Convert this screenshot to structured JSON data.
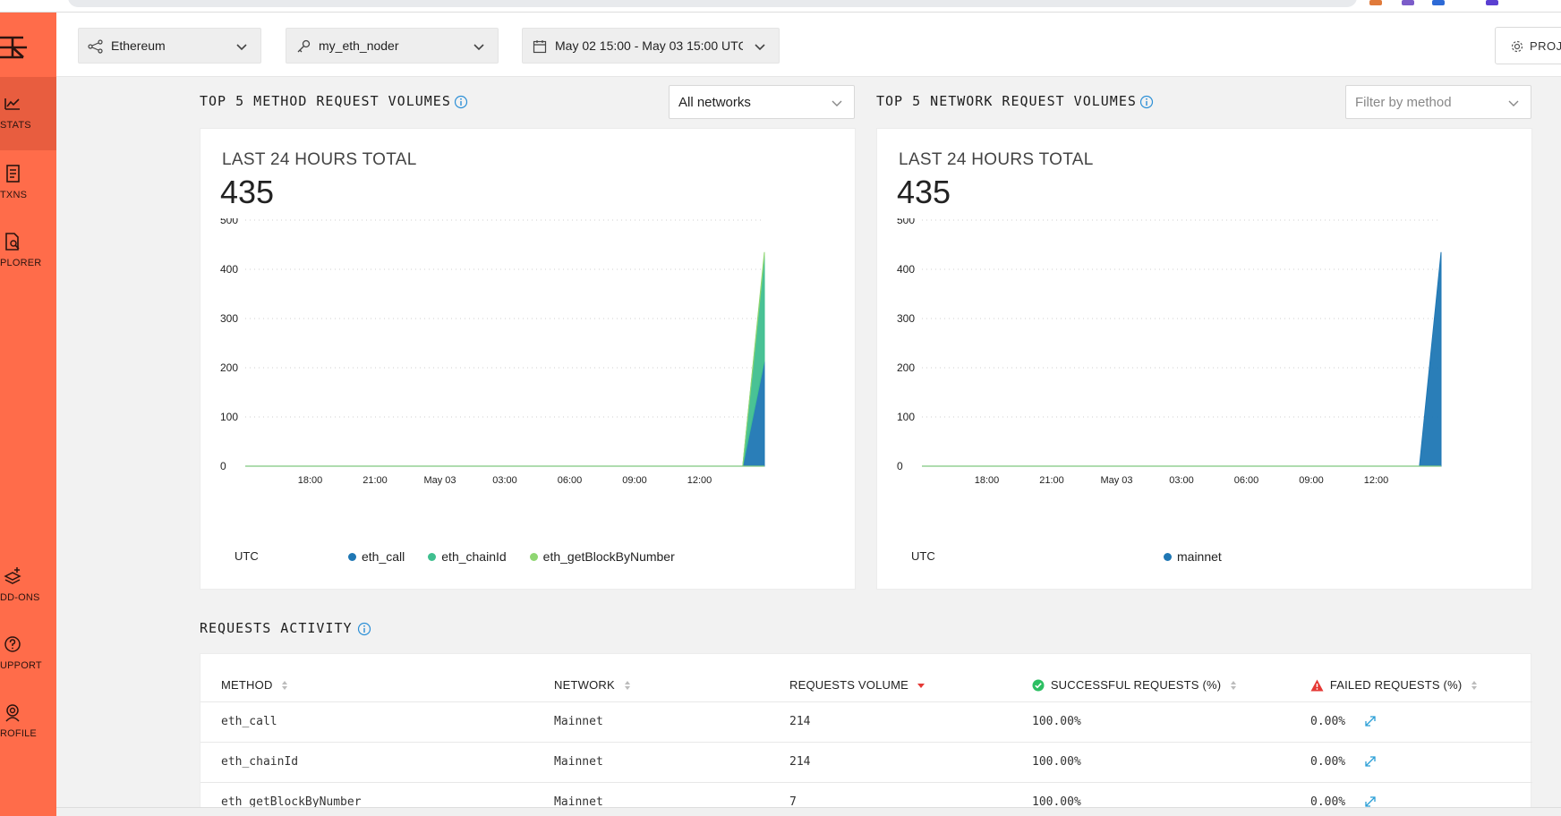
{
  "topbar": {
    "network": "Ethereum",
    "endpoint": "my_eth_noder",
    "daterange": "May 02 15:00 - May 03 15:00 UTC",
    "project_button": "PROJ"
  },
  "sidebar": {
    "items": [
      {
        "label": "STATS",
        "icon": "chart-line-icon",
        "active": true
      },
      {
        "label": "TXNS",
        "icon": "receipt-icon",
        "active": false
      },
      {
        "label": "PLORER",
        "icon": "file-search-icon",
        "active": false
      },
      {
        "label": "DD-ONS",
        "icon": "addons-icon",
        "active": false
      },
      {
        "label": "UPPORT",
        "icon": "question-icon",
        "active": false
      },
      {
        "label": "ROFILE",
        "icon": "profile-icon",
        "active": false
      }
    ]
  },
  "method_section": {
    "title": "TOP 5 METHOD REQUEST VOLUMES",
    "filter": "All networks",
    "caption": "LAST 24 HOURS TOTAL",
    "total": "435",
    "tz": "UTC"
  },
  "network_section": {
    "title": "TOP 5 NETWORK REQUEST VOLUMES",
    "filter_placeholder": "Filter by method",
    "caption": "LAST 24 HOURS TOTAL",
    "total": "435",
    "tz": "UTC"
  },
  "chart_data": [
    {
      "type": "area",
      "title": "",
      "x": [
        "15:00",
        "16:00",
        "17:00",
        "18:00",
        "19:00",
        "20:00",
        "21:00",
        "22:00",
        "23:00",
        "May 03",
        "01:00",
        "02:00",
        "03:00",
        "04:00",
        "05:00",
        "06:00",
        "07:00",
        "08:00",
        "09:00",
        "10:00",
        "11:00",
        "12:00",
        "13:00",
        "14:00",
        "15:00"
      ],
      "xticks": [
        "18:00",
        "21:00",
        "May 03",
        "03:00",
        "06:00",
        "09:00",
        "12:00"
      ],
      "ylim": [
        0,
        500
      ],
      "yticks": [
        0,
        100,
        200,
        300,
        400,
        500
      ],
      "stacked": true,
      "grid": true,
      "legend": "bottom",
      "series": [
        {
          "name": "eth_call",
          "color": "#1f77b4",
          "values": [
            0,
            0,
            0,
            0,
            0,
            0,
            0,
            0,
            0,
            0,
            0,
            0,
            0,
            0,
            0,
            0,
            0,
            0,
            0,
            0,
            0,
            0,
            0,
            0,
            214
          ]
        },
        {
          "name": "eth_chainId",
          "color": "#3fbf8f",
          "values": [
            0,
            0,
            0,
            0,
            0,
            0,
            0,
            0,
            0,
            0,
            0,
            0,
            0,
            0,
            0,
            0,
            0,
            0,
            0,
            0,
            0,
            0,
            0,
            0,
            214
          ]
        },
        {
          "name": "eth_getBlockByNumber",
          "color": "#8fd672",
          "values": [
            0,
            0,
            0,
            0,
            0,
            0,
            0,
            0,
            0,
            0,
            0,
            0,
            0,
            0,
            0,
            0,
            0,
            0,
            0,
            0,
            0,
            0,
            0,
            0,
            7
          ]
        }
      ]
    },
    {
      "type": "area",
      "title": "",
      "x": [
        "15:00",
        "16:00",
        "17:00",
        "18:00",
        "19:00",
        "20:00",
        "21:00",
        "22:00",
        "23:00",
        "May 03",
        "01:00",
        "02:00",
        "03:00",
        "04:00",
        "05:00",
        "06:00",
        "07:00",
        "08:00",
        "09:00",
        "10:00",
        "11:00",
        "12:00",
        "13:00",
        "14:00",
        "15:00"
      ],
      "xticks": [
        "18:00",
        "21:00",
        "May 03",
        "03:00",
        "06:00",
        "09:00",
        "12:00"
      ],
      "ylim": [
        0,
        500
      ],
      "yticks": [
        0,
        100,
        200,
        300,
        400,
        500
      ],
      "stacked": true,
      "grid": true,
      "legend": "bottom",
      "series": [
        {
          "name": "mainnet",
          "color": "#1f77b4",
          "values": [
            0,
            0,
            0,
            0,
            0,
            0,
            0,
            0,
            0,
            0,
            0,
            0,
            0,
            0,
            0,
            0,
            0,
            0,
            0,
            0,
            0,
            0,
            0,
            0,
            435
          ]
        }
      ]
    }
  ],
  "activity": {
    "title": "REQUESTS ACTIVITY",
    "headers": {
      "method": "METHOD",
      "network": "NETWORK",
      "volume": "REQUESTS VOLUME",
      "success": "SUCCESSFUL REQUESTS (%)",
      "failed": "FAILED REQUESTS (%)"
    },
    "rows": [
      {
        "method": "eth_call",
        "network": "Mainnet",
        "volume": "214",
        "success": "100.00%",
        "failed": "0.00%"
      },
      {
        "method": "eth_chainId",
        "network": "Mainnet",
        "volume": "214",
        "success": "100.00%",
        "failed": "0.00%"
      },
      {
        "method": "eth_getBlockByNumber",
        "network": "Mainnet",
        "volume": "7",
        "success": "100.00%",
        "failed": "0.00%"
      }
    ]
  },
  "colors": {
    "sidebar": "#ff6c4a",
    "sidebar_active": "#e85d3f",
    "info": "#2b8fd6",
    "success": "#2cbf62",
    "warning": "#e53935",
    "sort_active": "#e53935"
  }
}
